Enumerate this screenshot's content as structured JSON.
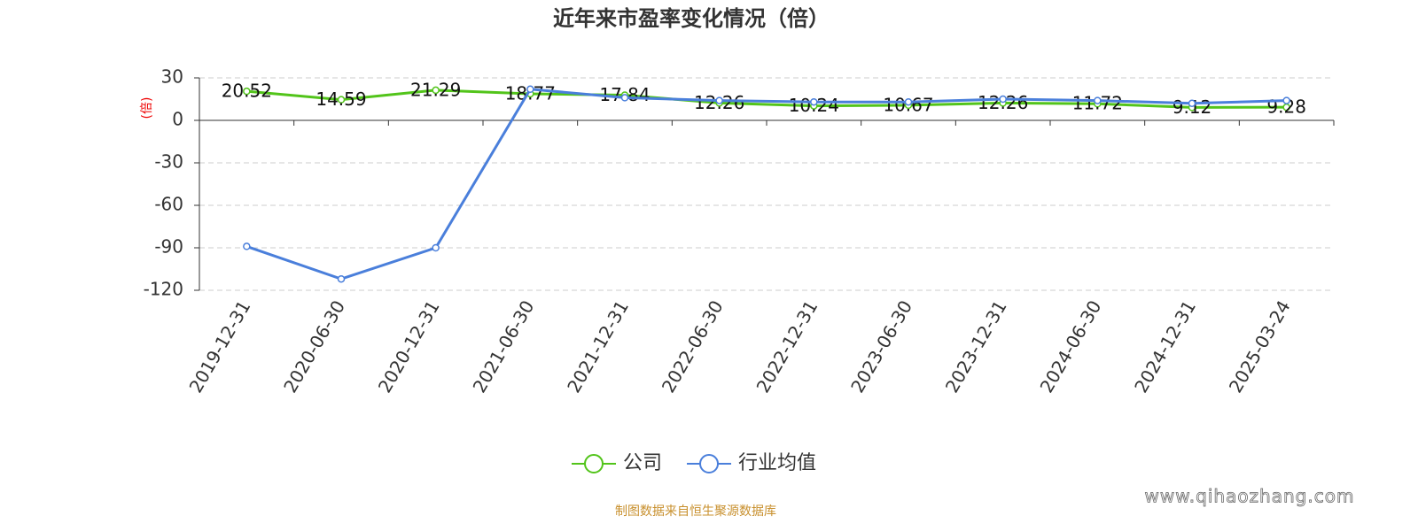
{
  "chart_data": {
    "type": "line",
    "title": "近年来市盈率变化情况（倍）",
    "y_label": "(倍)",
    "categories": [
      "2019-12-31",
      "2020-06-30",
      "2020-12-31",
      "2021-06-30",
      "2021-12-31",
      "2022-06-30",
      "2022-12-31",
      "2023-06-30",
      "2023-12-31",
      "2024-06-30",
      "2024-12-31",
      "2025-03-24"
    ],
    "series": [
      {
        "name": "公司",
        "color": "#52c41a",
        "show_labels": true,
        "values": [
          20.52,
          14.59,
          21.29,
          18.77,
          17.84,
          12.26,
          10.24,
          10.67,
          12.26,
          11.72,
          9.12,
          9.28
        ]
      },
      {
        "name": "行业均值",
        "color": "#4a7fdb",
        "show_labels": false,
        "values": [
          -89,
          -112,
          -90,
          22,
          16,
          14,
          13,
          13,
          15,
          14,
          12,
          14
        ]
      }
    ],
    "ylim": [
      -120,
      30
    ],
    "yticks": [
      -120,
      -90,
      -60,
      -30,
      0,
      30
    ],
    "grid": true
  },
  "source": "制图数据来自恒生聚源数据库",
  "watermark": "www.qihaozhang.com"
}
